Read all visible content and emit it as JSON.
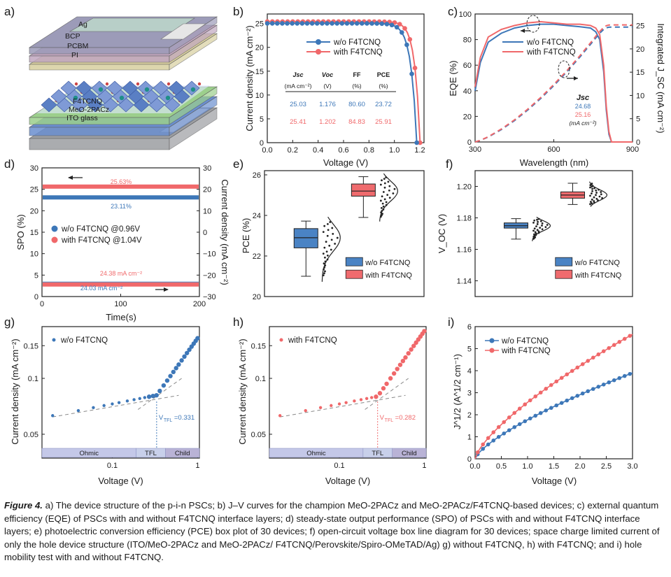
{
  "colors": {
    "blue": "#3d77b8",
    "red": "#f0686a",
    "blue_box": "#4a83c4",
    "red_box": "#ef6b6e",
    "axis": "#222222"
  },
  "panels": {
    "a": "a)",
    "b": "b)",
    "c": "c)",
    "d": "d)",
    "e": "e)",
    "f": "f)",
    "g": "g)",
    "h": "h)",
    "i": "i)"
  },
  "device": {
    "layers": [
      "Ag",
      "BCP",
      "PCBM",
      "PI",
      "F4TCNQ",
      "MeO-2PACz",
      "ITO glass"
    ]
  },
  "legend": {
    "without": "w/o F4TCNQ",
    "with": "with F4TCNQ"
  },
  "table_b": {
    "headers": [
      "J_SC (mA cm⁻²)",
      "V_OC (V)",
      "FF (%)",
      "PCE (%)"
    ],
    "head_top": [
      "Jsc",
      "Voc",
      "FF",
      "PCE"
    ],
    "head_unit": [
      "(mA cm⁻²)",
      "(V)",
      "(%)",
      "(%)"
    ],
    "without": [
      "25.03",
      "1.176",
      "80.60",
      "23.72"
    ],
    "with": [
      "25.41",
      "1.202",
      "84.83",
      "25.91"
    ]
  },
  "eqe_note": {
    "title": "Jsc",
    "v1": "24.68",
    "v2": "25.16",
    "unit": "(mA cm⁻²)"
  },
  "spo_labels": {
    "with_spo": "25.63%",
    "without_spo": "23.11%",
    "with_j": "24.38 mA cm⁻²",
    "without_j": "24.03 mA cm⁻²",
    "leg_without": "w/o F4TCNQ @0.96V",
    "leg_with": "with F4TCNQ @1.04V"
  },
  "sclc_regions": [
    "Ohmic",
    "TFL",
    "Child"
  ],
  "vtfl": {
    "g": "0.331",
    "h": "0.282"
  },
  "chart_data": [
    {
      "panel": "b",
      "type": "line",
      "xlabel": "Voltage (V)",
      "ylabel": "Current density (mA cm⁻²)",
      "xlim": [
        0,
        1.2
      ],
      "ylim": [
        0,
        27
      ],
      "xticks": [
        "0.0",
        "0.2",
        "0.4",
        "0.6",
        "0.8",
        "1.0",
        "1.2"
      ],
      "yticks": [
        "0",
        "5",
        "10",
        "15",
        "20",
        "25"
      ],
      "series": [
        {
          "name": "w/o F4TCNQ",
          "jsc": 25.03,
          "voc": 1.176,
          "ff": 80.6
        },
        {
          "name": "with F4TCNQ",
          "jsc": 25.41,
          "voc": 1.202,
          "ff": 84.83
        }
      ]
    },
    {
      "panel": "c",
      "type": "line",
      "xlabel": "Wavelength (nm)",
      "ylabel": "EQE (%)",
      "ylabel_right": "Integrated J_SC (mA cm⁻²)",
      "xlim": [
        300,
        900
      ],
      "ylim": [
        0,
        100
      ],
      "ylim_right": [
        0,
        27.5
      ],
      "xticks": [
        "300",
        "600",
        "900"
      ],
      "yticks": [
        "0",
        "20",
        "40",
        "60",
        "80",
        "100"
      ],
      "yticks_right": [
        "0",
        "5",
        "10",
        "15",
        "20",
        "25"
      ],
      "eqe_wavelengths": [
        300,
        320,
        350,
        400,
        450,
        500,
        550,
        600,
        650,
        700,
        740,
        760,
        775,
        790,
        800,
        810,
        820,
        900
      ],
      "series": [
        {
          "name": "w/o F4TCNQ",
          "eqe": [
            40,
            62,
            78,
            85,
            89,
            91,
            92,
            92,
            91,
            90,
            89,
            86,
            80,
            55,
            25,
            6,
            0,
            0
          ],
          "jsc_integrated": 24.68
        },
        {
          "name": "with F4TCNQ",
          "eqe": [
            43,
            66,
            82,
            88,
            91,
            93,
            94,
            93,
            92,
            92,
            91,
            89,
            84,
            60,
            28,
            8,
            0,
            0
          ],
          "jsc_integrated": 25.16
        }
      ]
    },
    {
      "panel": "d",
      "type": "line",
      "xlabel": "Time(s)",
      "ylabel": "SPO (%)",
      "ylabel_right": "Current density (mA cm⁻²)",
      "xlim": [
        0,
        200
      ],
      "ylim": [
        0,
        30
      ],
      "ylim_right": [
        -30,
        30
      ],
      "xticks": [
        "0",
        "100",
        "200"
      ],
      "yticks": [
        "0",
        "5",
        "10",
        "15",
        "20",
        "25",
        "30"
      ],
      "yticks_right": [
        "−30",
        "−20",
        "−10",
        "0",
        "10",
        "20",
        "30"
      ],
      "series": [
        {
          "name": "w/o F4TCNQ @0.96V",
          "spo": 23.11,
          "current_density": -24.03
        },
        {
          "name": "with F4TCNQ @1.04V",
          "spo": 25.63,
          "current_density": -24.38
        }
      ]
    },
    {
      "panel": "e",
      "type": "box",
      "ylabel": "PCE (%)",
      "ylim": [
        20,
        26
      ],
      "yticks": [
        "20",
        "22",
        "24",
        "26"
      ],
      "series": [
        {
          "name": "w/o F4TCNQ",
          "q1": 22.4,
          "median": 22.9,
          "q3": 23.35,
          "whisker_low": 21.0,
          "whisker_high": 23.72
        },
        {
          "name": "with F4TCNQ",
          "q1": 24.95,
          "median": 25.2,
          "q3": 25.55,
          "whisker_low": 23.9,
          "whisker_high": 25.91
        }
      ]
    },
    {
      "panel": "f",
      "type": "box",
      "ylabel": "V_OC (V)",
      "ylim": [
        1.13,
        1.21
      ],
      "yticks": [
        "1.14",
        "1.16",
        "1.18",
        "1.20"
      ],
      "series": [
        {
          "name": "w/o F4TCNQ",
          "q1": 1.1735,
          "median": 1.175,
          "q3": 1.1768,
          "whisker_low": 1.1665,
          "whisker_high": 1.1795
        },
        {
          "name": "with F4TCNQ",
          "q1": 1.1925,
          "median": 1.1945,
          "q3": 1.1965,
          "whisker_low": 1.1885,
          "whisker_high": 1.202
        }
      ]
    },
    {
      "panel": "g",
      "type": "scatter",
      "xscale": "log",
      "yscale": "log",
      "xlabel": "Voltage (V)",
      "ylabel": "Current density (mA cm⁻²)",
      "xlim": [
        0.015,
        1.05
      ],
      "ylim": [
        0.042,
        0.19
      ],
      "xticks": [
        "0.1",
        "1"
      ],
      "yticks": [
        "0.05",
        "0.1",
        "0.15"
      ],
      "legend": "w/o F4TCNQ",
      "vtfl": 0.331
    },
    {
      "panel": "h",
      "type": "scatter",
      "xscale": "log",
      "yscale": "log",
      "xlabel": "Voltage (V)",
      "ylabel": "Current density (mA cm⁻²)",
      "xlim": [
        0.015,
        1.05
      ],
      "ylim": [
        0.042,
        0.19
      ],
      "xticks": [
        "0.1",
        "1"
      ],
      "yticks": [
        "0.05",
        "0.1",
        "0.15"
      ],
      "legend": "with F4TCNQ",
      "vtfl": 0.282
    },
    {
      "panel": "i",
      "type": "line",
      "xlabel": "Voltage (V)",
      "ylabel": "J^1/2 (A^1/2 cm⁻¹)",
      "xlim": [
        0,
        3
      ],
      "ylim": [
        0,
        6
      ],
      "xticks": [
        "0.0",
        "0.5",
        "1.0",
        "1.5",
        "2.0",
        "2.5",
        "3.0"
      ],
      "yticks": [
        "0",
        "1",
        "2",
        "3",
        "4",
        "5",
        "6"
      ],
      "series": [
        {
          "name": "w/o F4TCNQ",
          "end_value": 3.9
        },
        {
          "name": "with F4TCNQ",
          "end_value": 5.65
        }
      ]
    }
  ],
  "caption": {
    "label": "Figure 4.",
    "text": " a) The device structure of the p-i-n PSCs; b) J–V curves for the champion MeO-2PACz and MeO-2PACz/F4TCNQ-based devices; c) external quantum efficiency (EQE) of PSCs with and without F4TCNQ interface layers; d) steady-state output performance (SPO) of PSCs with and without F4TCNQ interface layers; e) photoelectric conversion efficiency (PCE) box plot of 30 devices; f) open-circuit voltage box line diagram for 30 devices; space charge limited current of only the hole device structure (ITO/MeO-2PACz and MeO-2PACz/ F4TCNQ/Perovskite/Spiro-OMeTAD/Ag) g) without F4TCNQ, h) with F4TCNQ; and i) hole mobility test with and without F4TCNQ."
  }
}
